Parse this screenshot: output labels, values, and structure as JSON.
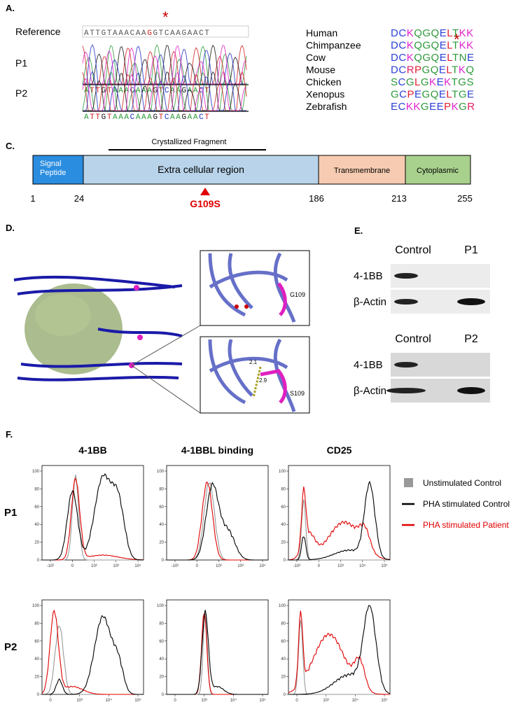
{
  "panel_a": {
    "label": "A.",
    "marker": "*",
    "rows": [
      {
        "name": "Reference",
        "sequence": "ATTGTAAACAAGGTCAAGAACT"
      },
      {
        "name": "P1",
        "sequence": "ATTGTAAACAAAGTCAAGAACT"
      },
      {
        "name": "P2",
        "sequence": "ATTGTAAACAAAGTCAAGAACT"
      }
    ],
    "species": [
      {
        "name": "Human",
        "sequence": "DCKQGQELTKK"
      },
      {
        "name": "Chimpanzee",
        "sequence": "DCKQGQELTKK"
      },
      {
        "name": "Cow",
        "sequence": "DCKQGQELTNE"
      },
      {
        "name": "Mouse",
        "sequence": "DCRPGQELTKQ"
      },
      {
        "name": "Chicken",
        "sequence": "SCGLGKEKTGS"
      },
      {
        "name": "Xenopus",
        "sequence": "GCPEGQELTGE"
      },
      {
        "name": "Zebrafish",
        "sequence": "ECKKGEEPKGR"
      }
    ]
  },
  "panel_c": {
    "label": "C.",
    "fragment": "Crystallized Fragment",
    "domains": [
      "Signal Peptide",
      "Extra cellular region",
      "Transmembrane",
      "Cytoplasmic"
    ],
    "positions": [
      1,
      24,
      186,
      213,
      255
    ],
    "mutation": "G109S"
  },
  "panel_d": {
    "label": "D.",
    "wild_type": "G109",
    "mutant": "S109",
    "distances": [
      "2.1",
      "2.9"
    ]
  },
  "panel_e": {
    "label": "E.",
    "blots": [
      {
        "lanes": [
          "Control",
          "P1"
        ],
        "rows": [
          "4-1BB",
          "β-Actin"
        ]
      },
      {
        "lanes": [
          "Control",
          "P2"
        ],
        "rows": [
          "4-1BB",
          "β-Actin"
        ]
      }
    ]
  },
  "panel_f": {
    "label": "F.",
    "columns": [
      "4-1BB",
      "4-1BBL binding",
      "CD25"
    ],
    "rows": [
      "P1",
      "P2"
    ],
    "legend": [
      "Unstimulated Control",
      "PHA stimulated Control",
      "PHA stimulated Patient"
    ],
    "yticks": [
      0,
      20,
      40,
      60,
      80,
      100
    ],
    "xticks": [
      [
        "-10²",
        "0",
        "10²",
        "10³",
        "10⁴"
      ],
      [
        "-10²",
        "0",
        "10²",
        "10³",
        "10⁴"
      ],
      [
        "-10²",
        "0",
        "10³",
        "10⁴",
        "10⁵"
      ],
      [
        "0",
        "10³",
        "10⁴",
        "10⁵"
      ],
      [
        "0",
        "10³",
        "10⁴",
        "10⁵"
      ],
      [
        "0",
        "10³",
        "10⁴",
        "10⁵"
      ]
    ]
  }
}
